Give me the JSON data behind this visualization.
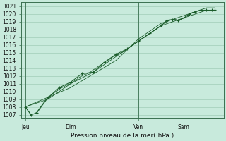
{
  "title": "Pression niveau de la mer( hPa )",
  "bg_color": "#c8eadc",
  "grid_color": "#a0ccb8",
  "line_color": "#1a5c2a",
  "marker_color": "#1a5c2a",
  "yticks": [
    1007,
    1008,
    1009,
    1010,
    1011,
    1012,
    1013,
    1014,
    1015,
    1016,
    1017,
    1018,
    1019,
    1020,
    1021
  ],
  "ylim": [
    1006.5,
    1021.5
  ],
  "xtick_labels": [
    "Jeu",
    "Dim",
    "Ven",
    "Sam"
  ],
  "xtick_positions": [
    0,
    48,
    120,
    168
  ],
  "vline_positions": [
    0,
    48,
    120,
    168
  ],
  "xlim": [
    -4,
    210
  ],
  "series1": [
    [
      0,
      1008.0
    ],
    [
      3,
      1007.5
    ],
    [
      6,
      1007.0
    ],
    [
      9,
      1007.1
    ],
    [
      12,
      1007.3
    ],
    [
      15,
      1007.8
    ],
    [
      18,
      1008.3
    ],
    [
      21,
      1008.8
    ],
    [
      24,
      1009.2
    ],
    [
      27,
      1009.5
    ],
    [
      30,
      1009.8
    ],
    [
      33,
      1010.0
    ],
    [
      36,
      1010.3
    ],
    [
      39,
      1010.5
    ],
    [
      42,
      1010.7
    ],
    [
      45,
      1010.9
    ],
    [
      48,
      1011.0
    ],
    [
      51,
      1011.3
    ],
    [
      54,
      1011.5
    ],
    [
      57,
      1011.8
    ],
    [
      60,
      1012.0
    ],
    [
      63,
      1012.2
    ],
    [
      66,
      1012.3
    ],
    [
      69,
      1012.5
    ],
    [
      72,
      1012.8
    ],
    [
      75,
      1013.0
    ],
    [
      78,
      1013.3
    ],
    [
      81,
      1013.5
    ],
    [
      84,
      1013.8
    ],
    [
      87,
      1014.0
    ],
    [
      90,
      1014.2
    ],
    [
      93,
      1014.5
    ],
    [
      96,
      1014.7
    ],
    [
      99,
      1014.8
    ],
    [
      102,
      1015.0
    ],
    [
      105,
      1015.2
    ],
    [
      108,
      1015.5
    ],
    [
      111,
      1015.8
    ],
    [
      114,
      1016.0
    ],
    [
      117,
      1016.3
    ],
    [
      120,
      1016.5
    ],
    [
      123,
      1016.8
    ],
    [
      126,
      1017.0
    ],
    [
      129,
      1017.3
    ],
    [
      132,
      1017.5
    ],
    [
      135,
      1017.8
    ],
    [
      138,
      1018.0
    ],
    [
      141,
      1018.3
    ],
    [
      144,
      1018.5
    ],
    [
      147,
      1018.8
    ],
    [
      150,
      1019.0
    ],
    [
      153,
      1019.2
    ],
    [
      156,
      1019.3
    ],
    [
      159,
      1019.3
    ],
    [
      162,
      1019.2
    ],
    [
      165,
      1019.3
    ],
    [
      168,
      1019.5
    ],
    [
      171,
      1019.8
    ],
    [
      174,
      1020.0
    ],
    [
      177,
      1020.2
    ],
    [
      180,
      1020.3
    ],
    [
      183,
      1020.4
    ],
    [
      186,
      1020.5
    ],
    [
      189,
      1020.5
    ],
    [
      192,
      1020.4
    ],
    [
      195,
      1020.5
    ],
    [
      198,
      1020.5
    ],
    [
      201,
      1020.5
    ]
  ],
  "series2": [
    [
      0,
      1008.0
    ],
    [
      24,
      1009.0
    ],
    [
      48,
      1011.0
    ],
    [
      72,
      1012.5
    ],
    [
      96,
      1014.5
    ],
    [
      120,
      1016.5
    ],
    [
      144,
      1018.5
    ],
    [
      168,
      1019.5
    ],
    [
      192,
      1020.5
    ],
    [
      201,
      1020.5
    ]
  ],
  "series3": [
    [
      0,
      1008.0
    ],
    [
      48,
      1010.5
    ],
    [
      96,
      1014.0
    ],
    [
      120,
      1016.8
    ],
    [
      144,
      1018.8
    ],
    [
      168,
      1019.8
    ],
    [
      192,
      1020.8
    ],
    [
      201,
      1020.8
    ]
  ],
  "series4_marked": [
    [
      0,
      1008.0
    ],
    [
      6,
      1007.0
    ],
    [
      12,
      1007.2
    ],
    [
      24,
      1009.2
    ],
    [
      36,
      1010.5
    ],
    [
      48,
      1011.2
    ],
    [
      60,
      1012.3
    ],
    [
      72,
      1012.5
    ],
    [
      84,
      1013.8
    ],
    [
      96,
      1014.8
    ],
    [
      108,
      1015.5
    ],
    [
      120,
      1016.5
    ],
    [
      132,
      1017.5
    ],
    [
      144,
      1018.5
    ],
    [
      150,
      1019.2
    ],
    [
      156,
      1019.3
    ],
    [
      162,
      1019.2
    ],
    [
      168,
      1019.5
    ],
    [
      174,
      1020.0
    ],
    [
      180,
      1020.3
    ],
    [
      186,
      1020.5
    ],
    [
      192,
      1020.5
    ],
    [
      198,
      1020.5
    ],
    [
      201,
      1020.5
    ]
  ]
}
